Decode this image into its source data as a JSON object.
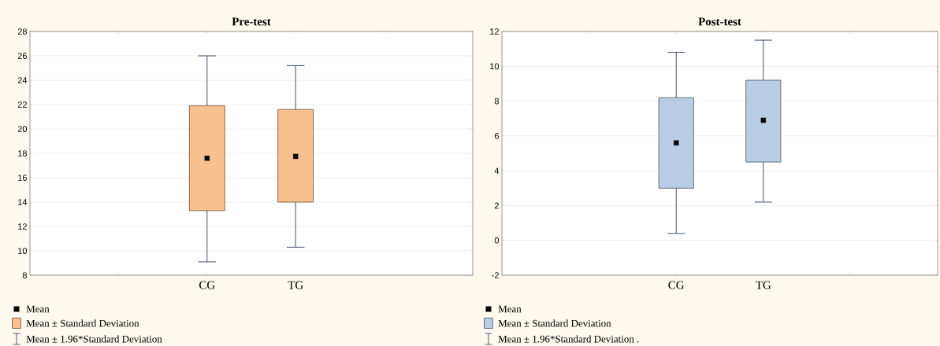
{
  "chart_data": [
    {
      "type": "box",
      "title": "Pre-test",
      "categories": [
        "CG",
        "TG"
      ],
      "ylim": [
        8,
        28
      ],
      "yticks": [
        8,
        10,
        12,
        14,
        16,
        18,
        20,
        22,
        24,
        26,
        28
      ],
      "grid": "y",
      "marker": "square",
      "series": [
        {
          "color": "#f9c08f",
          "boxes": [
            {
              "low": 9.1,
              "q1": 13.3,
              "median": 17.6,
              "q3": 21.9,
              "high": 26.0
            },
            {
              "low": 10.3,
              "q1": 14.0,
              "median": 17.75,
              "q3": 21.6,
              "high": 25.2
            }
          ]
        }
      ],
      "annotations": [
        "Mean",
        "Mean ± Standard Deviation",
        "Mean ± 1.96*Standard Deviation"
      ]
    },
    {
      "type": "box",
      "title": "Post-test",
      "categories": [
        "CG",
        "TG"
      ],
      "ylim": [
        -2,
        12
      ],
      "yticks": [
        -2,
        0,
        2,
        4,
        6,
        8,
        10,
        12
      ],
      "grid": "y",
      "marker": "square",
      "series": [
        {
          "color": "#b8cce4",
          "boxes": [
            {
              "low": 0.4,
              "q1": 3.0,
              "median": 5.6,
              "q3": 8.2,
              "high": 10.8
            },
            {
              "low": 2.2,
              "q1": 4.5,
              "median": 6.9,
              "q3": 9.2,
              "high": 11.5
            }
          ]
        }
      ],
      "annotations": [
        "Mean",
        "Mean ± Standard Deviation",
        "Mean ± 1.96*Standard Deviation ."
      ]
    }
  ]
}
